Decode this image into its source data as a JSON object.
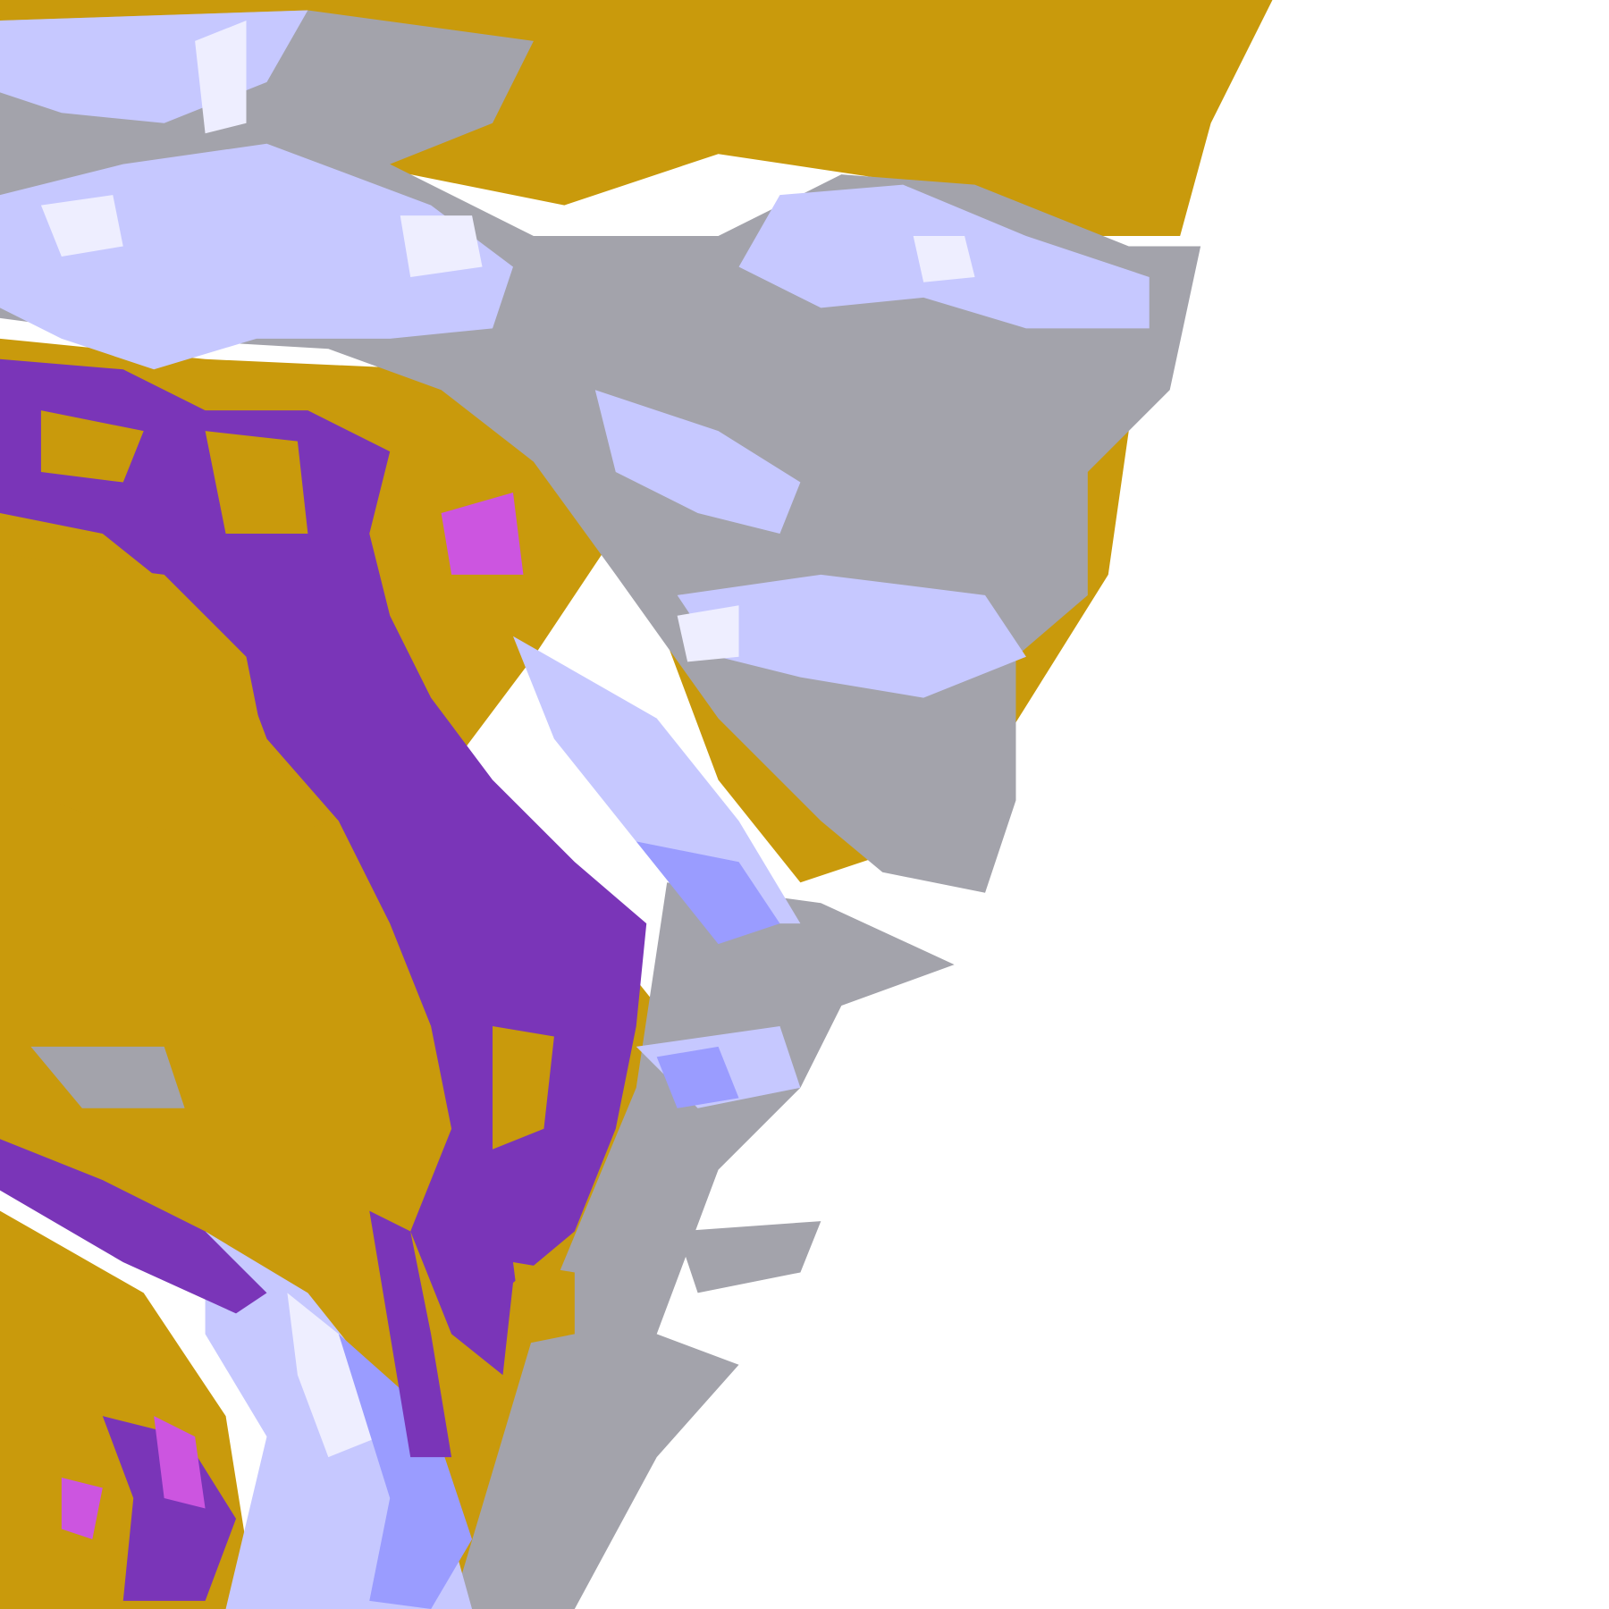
{
  "image": {
    "kind": "satellite cloud-type classification",
    "text_visible": false
  },
  "palette": {
    "background": "#ffffff",
    "gold": "#c99a0c",
    "purple": "#7a35b8",
    "magenta": "#cc55e0",
    "periwinkle": "#9a9cff",
    "lavender": "#c6c8ff",
    "pale": "#eeeeff",
    "gray": "#a3a3ab"
  }
}
